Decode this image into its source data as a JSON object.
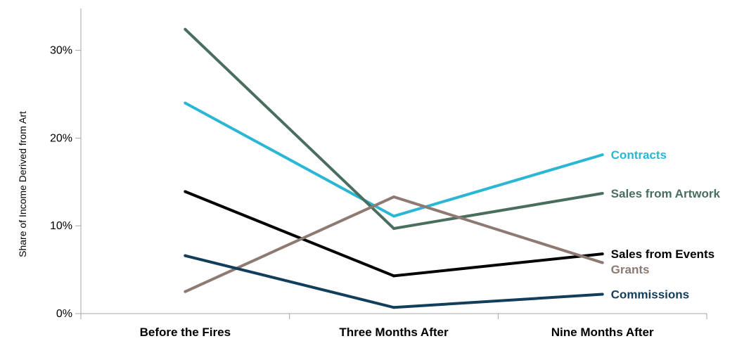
{
  "chart_data": {
    "type": "line",
    "title": "",
    "xlabel": "",
    "ylabel": "Share of Income Derived from Art",
    "categories": [
      "Before the Fires",
      "Three Months After",
      "Nine Months After"
    ],
    "ylim": [
      0,
      0.33
    ],
    "y_ticks": [
      {
        "value": 0,
        "label": "0%"
      },
      {
        "value": 0.1,
        "label": "10%"
      },
      {
        "value": 0.2,
        "label": "20%"
      },
      {
        "value": 0.3,
        "label": "30%"
      }
    ],
    "grid": false,
    "legend": "inline-right",
    "series": [
      {
        "name": "Contracts",
        "color": "#2BB7D4",
        "values": [
          0.24,
          0.111,
          0.181
        ]
      },
      {
        "name": "Sales from Artwork",
        "color": "#4A6E5E",
        "values": [
          0.324,
          0.097,
          0.137
        ]
      },
      {
        "name": "Sales from Events",
        "color": "#000000",
        "values": [
          0.139,
          0.043,
          0.068
        ]
      },
      {
        "name": "Grants",
        "color": "#8E7A72",
        "values": [
          0.025,
          0.133,
          0.058
        ]
      },
      {
        "name": "Commissions",
        "color": "#123E5C",
        "values": [
          0.066,
          0.007,
          0.022
        ]
      }
    ]
  }
}
